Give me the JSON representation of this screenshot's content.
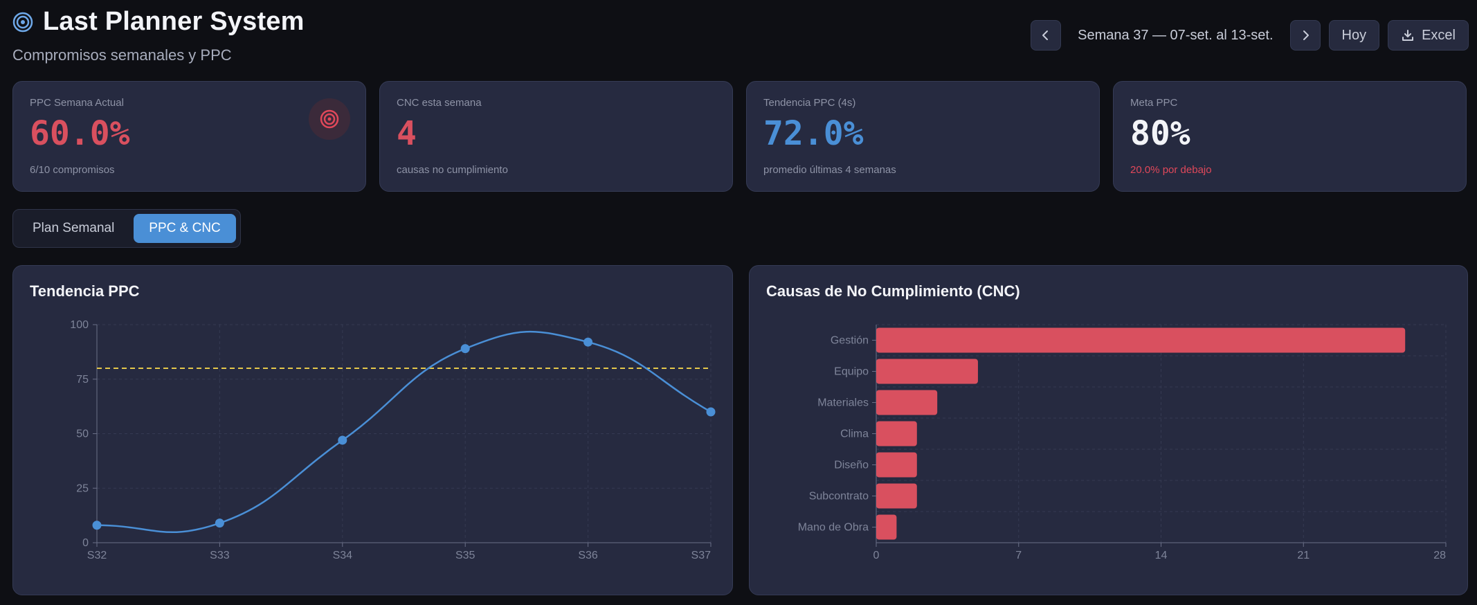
{
  "header": {
    "title": "Last Planner System",
    "subtitle": "Compromisos semanales y PPC",
    "icon": "target-icon"
  },
  "toolbar": {
    "week_label": "Semana 37 — 07-set. al 13-set.",
    "today_label": "Hoy",
    "excel_label": "Excel"
  },
  "kpis": [
    {
      "label": "PPC Semana Actual",
      "value": "60.0%",
      "sub": "6/10 compromisos",
      "color": "#d9505f",
      "subColor": "#8e93a6"
    },
    {
      "label": "CNC esta semana",
      "value": "4",
      "sub": "causas no cumplimiento",
      "color": "#d9505f",
      "subColor": "#8e93a6"
    },
    {
      "label": "Tendencia PPC (4s)",
      "value": "72.0%",
      "sub": "promedio últimas 4 semanas",
      "color": "#4a8fd6",
      "subColor": "#8e93a6"
    },
    {
      "label": "Meta PPC",
      "value": "80%",
      "sub": "20.0% por debajo",
      "color": "#f3f4f8",
      "subColor": "#e0485a"
    }
  ],
  "tabs": [
    {
      "label": "Plan Semanal",
      "active": false
    },
    {
      "label": "PPC & CNC",
      "active": true
    }
  ],
  "colors": {
    "accent": "#4a8fd6",
    "danger": "#d9505f",
    "target_line": "#e5c84a"
  },
  "chart_data": [
    {
      "type": "line",
      "title": "Tendencia PPC",
      "categories": [
        "S32",
        "S33",
        "S34",
        "S35",
        "S36",
        "S37"
      ],
      "series": [
        {
          "values": [
            8,
            9,
            47,
            89,
            92,
            60
          ]
        }
      ],
      "reference_line": 80,
      "ylim": [
        0,
        100
      ],
      "yticks": [
        0,
        25,
        50,
        75,
        100
      ],
      "grid": true
    },
    {
      "type": "bar",
      "orientation": "horizontal",
      "title": "Causas de No Cumplimiento (CNC)",
      "categories": [
        "Gestión",
        "Equipo",
        "Materiales",
        "Clima",
        "Diseño",
        "Subcontrato",
        "Mano de Obra"
      ],
      "values": [
        26,
        5,
        3,
        2,
        2,
        2,
        1
      ],
      "xlim": [
        0,
        28
      ],
      "xticks": [
        0,
        7,
        14,
        21,
        28
      ],
      "grid": true
    }
  ]
}
